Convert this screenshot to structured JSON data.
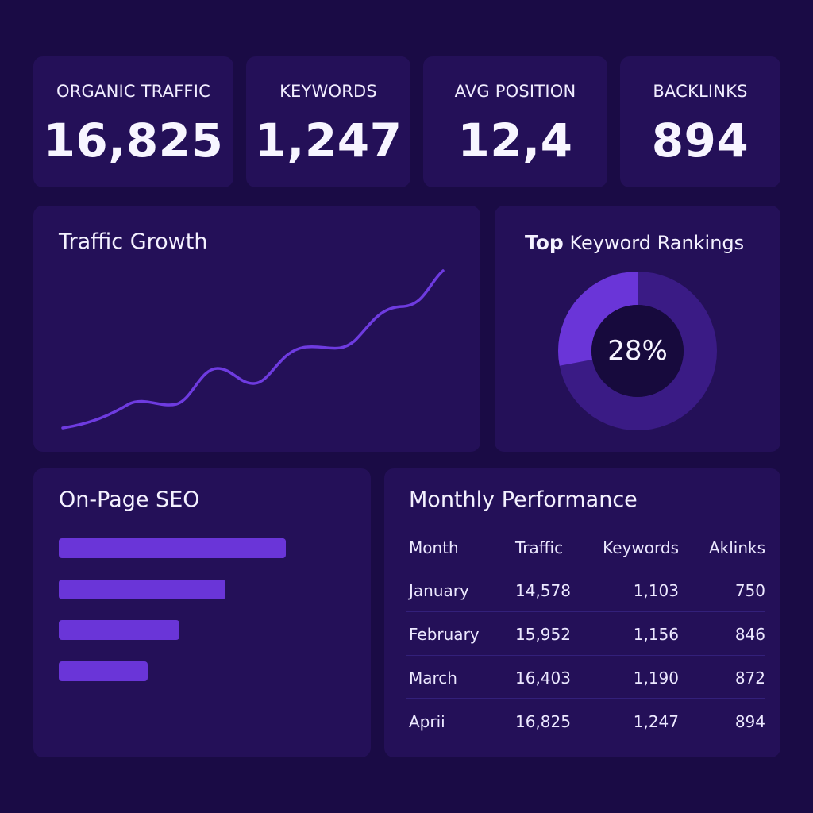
{
  "kpis": [
    {
      "label": "ORGANIC TRAFFIC",
      "value": "16,825"
    },
    {
      "label": "KEYWORDS",
      "value": "1,247"
    },
    {
      "label": "AVG POSITION",
      "value": "12,4"
    },
    {
      "label": "BACKLINKS",
      "value": "894"
    }
  ],
  "traffic_growth": {
    "title": "Traffic Growth"
  },
  "keyword_rankings": {
    "title_strong": "Top",
    "title_rest": "Keyword Rankings",
    "percent_label": "28%",
    "percent_value": 0.28
  },
  "on_page_seo": {
    "title": "On-Page SEO",
    "bars": [
      0.94,
      0.69,
      0.5,
      0.37
    ]
  },
  "monthly_performance": {
    "title": "Monthly Performance",
    "columns": [
      "Month",
      "Traffic",
      "Keywords",
      "Aklinks"
    ],
    "rows": [
      [
        "January",
        "14,578",
        "1,103",
        "750"
      ],
      [
        "February",
        "15,952",
        "1,156",
        "846"
      ],
      [
        "March",
        "16,403",
        "1,190",
        "872"
      ],
      [
        "Aprii",
        "16,825",
        "1,247",
        "894"
      ]
    ]
  },
  "colors": {
    "background": "#1a0b45",
    "card": "#241058",
    "accent": "#6a35d8",
    "donut_track": "#3a1b85",
    "donut_center": "#170a3d"
  }
}
